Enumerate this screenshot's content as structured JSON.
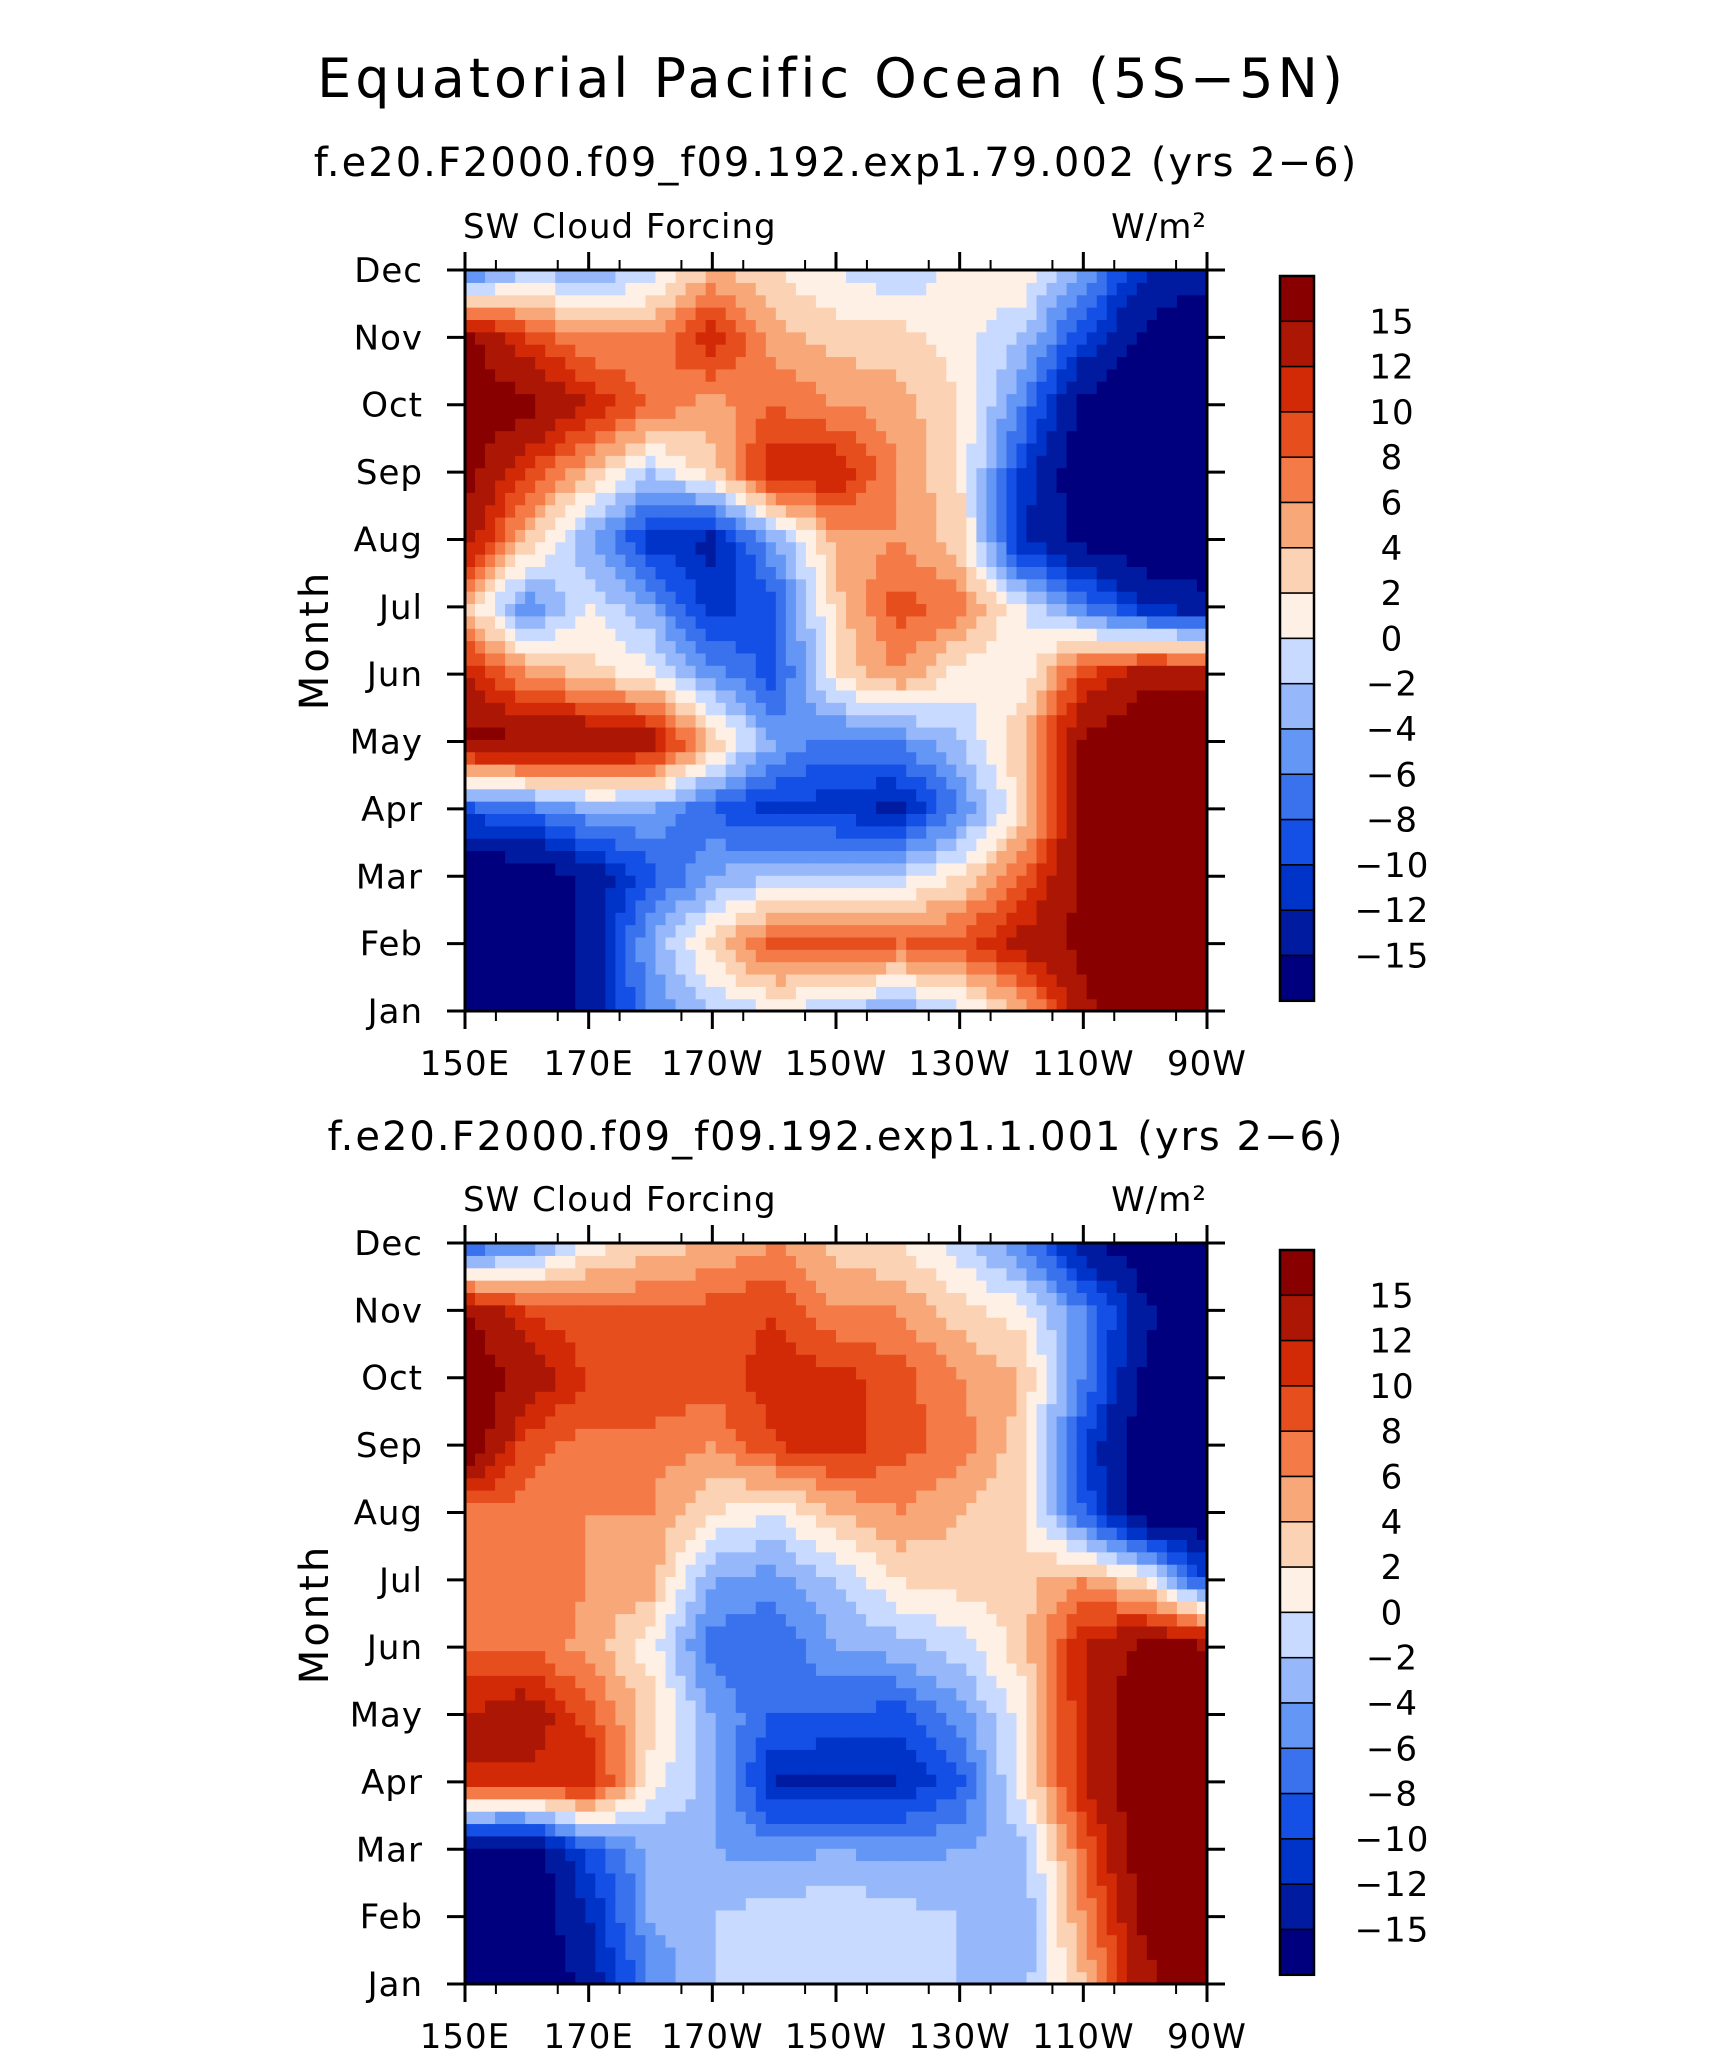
{
  "figure": {
    "title": "Equatorial Pacific Ocean (5S−5N)"
  },
  "chart_data": [
    {
      "type": "heatmap",
      "case_title": "f.e20.F2000.f09_f09.192.exp1.79.002 (yrs 2−6)",
      "left_label": "SW Cloud Forcing",
      "right_label": "W/m²",
      "ylabel": "Month",
      "x_ticklabels": [
        "150E",
        "170E",
        "170W",
        "150W",
        "130W",
        "110W",
        "90W"
      ],
      "x": [
        150,
        160,
        170,
        180,
        190,
        200,
        210,
        220,
        230,
        240,
        250,
        260,
        270
      ],
      "x_units": "degrees east longitude",
      "y": [
        "Jan",
        "Feb",
        "Mar",
        "Apr",
        "May",
        "Jun",
        "Jul",
        "Aug",
        "Sep",
        "Oct",
        "Nov",
        "Dec"
      ],
      "colorbar_labels": [
        "15",
        "12",
        "10",
        "8",
        "6",
        "4",
        "2",
        "0",
        "−2",
        "−4",
        "−6",
        "−8",
        "−10",
        "−12",
        "−15"
      ],
      "z": [
        [
          -18,
          -18,
          -14,
          -6,
          -2,
          0,
          -2,
          -4,
          -1,
          4,
          14,
          18,
          18
        ],
        [
          -18,
          -18,
          -14,
          -4,
          3,
          9,
          9,
          8,
          9,
          13,
          16,
          18,
          18
        ],
        [
          -18,
          -18,
          -14,
          -9,
          -4,
          -2,
          -2,
          -1,
          2,
          8,
          16,
          18,
          18
        ],
        [
          -9,
          -7,
          -4,
          -4,
          -8,
          -11,
          -11,
          -13,
          -6,
          2,
          16,
          18,
          18
        ],
        [
          16,
          16,
          16,
          14,
          4,
          -4,
          -7,
          -6,
          -2,
          4,
          16,
          18,
          18
        ],
        [
          12,
          6,
          3,
          1,
          -5,
          -9,
          2,
          6,
          1,
          0,
          10,
          14,
          14
        ],
        [
          4,
          -6,
          0,
          -4,
          -11,
          -9,
          3,
          9,
          7,
          0,
          -6,
          -12,
          -14
        ],
        [
          14,
          4,
          -4,
          -11,
          -13,
          -4,
          5,
          6,
          3,
          -12,
          -16,
          -18,
          -18
        ],
        [
          16,
          10,
          4,
          -2,
          3,
          12,
          12,
          6,
          2,
          -10,
          -18,
          -18,
          -18
        ],
        [
          18,
          16,
          12,
          8,
          5,
          8,
          6,
          5,
          2,
          -6,
          -16,
          -18,
          -18
        ],
        [
          16,
          10,
          6,
          6,
          12,
          5,
          3,
          3,
          1,
          -2,
          -10,
          -16,
          -18
        ],
        [
          -8,
          -2,
          -4,
          -1,
          4,
          2,
          0,
          -2,
          1,
          2,
          -4,
          -12,
          -14
        ]
      ]
    },
    {
      "type": "heatmap",
      "case_title": "f.e20.F2000.f09_f09.192.exp1.1.001 (yrs 2−6)",
      "left_label": "SW Cloud Forcing",
      "right_label": "W/m²",
      "ylabel": "Month",
      "x_ticklabels": [
        "150E",
        "170E",
        "170W",
        "150W",
        "130W",
        "110W",
        "90W"
      ],
      "x": [
        150,
        160,
        170,
        180,
        190,
        200,
        210,
        220,
        230,
        240,
        250,
        260,
        270
      ],
      "x_units": "degrees east longitude",
      "y": [
        "Jan",
        "Feb",
        "Mar",
        "Apr",
        "May",
        "Jun",
        "Jul",
        "Aug",
        "Sep",
        "Oct",
        "Nov",
        "Dec"
      ],
      "colorbar_labels": [
        "15",
        "12",
        "10",
        "8",
        "6",
        "4",
        "2",
        "0",
        "−2",
        "−4",
        "−6",
        "−8",
        "−10",
        "−12",
        "−15"
      ],
      "z": [
        [
          -18,
          -18,
          -14,
          -6,
          -2,
          -1,
          -1,
          -2,
          -2,
          -3,
          4,
          14,
          18
        ],
        [
          -18,
          -18,
          -12,
          -4,
          -2,
          -1,
          0,
          -1,
          -2,
          -4,
          6,
          16,
          18
        ],
        [
          -18,
          -18,
          -9,
          -4,
          -4,
          -5,
          -4,
          -5,
          -4,
          -3,
          8,
          18,
          18
        ],
        [
          12,
          11,
          12,
          1,
          -3,
          -12,
          -13,
          -12,
          -9,
          1,
          12,
          18,
          18
        ],
        [
          12,
          14,
          9,
          3,
          -4,
          -8,
          -8,
          -9,
          -5,
          1,
          12,
          18,
          18
        ],
        [
          8,
          8,
          5,
          1,
          -7,
          -8,
          -4,
          -3,
          -1,
          3,
          12,
          16,
          16
        ],
        [
          7,
          8,
          6,
          5,
          -4,
          -5,
          -2,
          2,
          3,
          3,
          6,
          2,
          -10
        ],
        [
          7,
          7,
          6,
          6,
          2,
          0,
          4,
          6,
          4,
          2,
          -8,
          -18,
          -18
        ],
        [
          18,
          9,
          7,
          7,
          6,
          10,
          11,
          9,
          7,
          3,
          -10,
          -18,
          -18
        ],
        [
          18,
          14,
          10,
          10,
          9,
          11,
          11,
          9,
          6,
          4,
          -6,
          -16,
          -18
        ],
        [
          15,
          10,
          8,
          8,
          9,
          10,
          6,
          6,
          3,
          1,
          -6,
          -14,
          -18
        ],
        [
          -9,
          -6,
          1,
          3,
          4,
          6,
          3,
          2,
          -1,
          -6,
          -14,
          -18,
          -16
        ]
      ]
    }
  ]
}
